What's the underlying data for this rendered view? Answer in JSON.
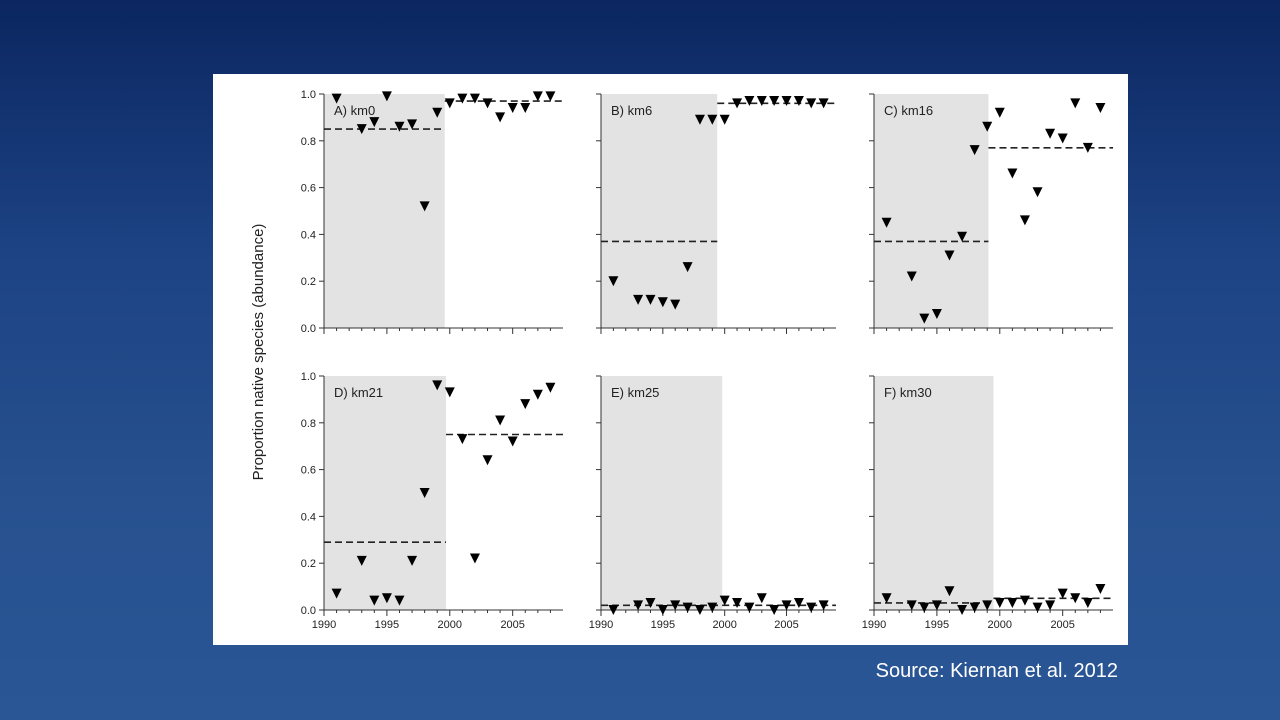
{
  "slide": {
    "source_text": "Source: Kiernan et al. 2012"
  },
  "colors": {
    "shade": "#e3e3e3",
    "marker": "#000000",
    "axis": "#333333"
  },
  "chart_data": {
    "type": "scatter",
    "ylabel": "Proportion native species (abundance)",
    "xlim": [
      1990,
      2009
    ],
    "ylim": [
      0,
      1.0
    ],
    "x_ticks": [
      1990,
      1995,
      2000,
      2005
    ],
    "y_ticks": [
      "0.0",
      "0.2",
      "0.4",
      "0.6",
      "0.8",
      "1.0"
    ],
    "panels": [
      {
        "label": "A) km0",
        "shade_range": [
          1990,
          1999.6
        ],
        "mean_lines": [
          {
            "x": [
              1990,
              1999.6
            ],
            "y": 0.85
          },
          {
            "x": [
              1999.6,
              2009
            ],
            "y": 0.97
          }
        ],
        "x": [
          1991,
          1993,
          1994,
          1995,
          1996,
          1997,
          1998,
          1999,
          2000,
          2001,
          2002,
          2003,
          2004,
          2005,
          2006,
          2007,
          2008
        ],
        "y": [
          0.98,
          0.85,
          0.88,
          0.99,
          0.86,
          0.87,
          0.52,
          0.92,
          0.96,
          0.98,
          0.98,
          0.96,
          0.9,
          0.94,
          0.94,
          0.99,
          0.99
        ]
      },
      {
        "label": "B) km6",
        "shade_range": [
          1990,
          1999.4
        ],
        "mean_lines": [
          {
            "x": [
              1990,
              1999.4
            ],
            "y": 0.37
          },
          {
            "x": [
              1999.4,
              2009
            ],
            "y": 0.96
          }
        ],
        "x": [
          1991,
          1993,
          1994,
          1995,
          1996,
          1997,
          1998,
          1999,
          2000,
          2001,
          2002,
          2003,
          2004,
          2005,
          2006,
          2007,
          2008
        ],
        "y": [
          0.2,
          0.12,
          0.12,
          0.11,
          0.1,
          0.26,
          0.89,
          0.89,
          0.89,
          0.96,
          0.97,
          0.97,
          0.97,
          0.97,
          0.97,
          0.96,
          0.96
        ]
      },
      {
        "label": "C) km16",
        "shade_range": [
          1990,
          1999.1
        ],
        "mean_lines": [
          {
            "x": [
              1990,
              1999.1
            ],
            "y": 0.37
          },
          {
            "x": [
              1999.1,
              2009
            ],
            "y": 0.77
          }
        ],
        "x": [
          1991,
          1993,
          1994,
          1995,
          1996,
          1997,
          1998,
          1999,
          2000,
          2001,
          2002,
          2003,
          2004,
          2005,
          2006,
          2007,
          2008
        ],
        "y": [
          0.45,
          0.22,
          0.04,
          0.06,
          0.31,
          0.39,
          0.76,
          0.86,
          0.92,
          0.66,
          0.46,
          0.58,
          0.83,
          0.81,
          0.96,
          0.77,
          0.94
        ]
      },
      {
        "label": "D) km21",
        "shade_range": [
          1990,
          1999.7
        ],
        "mean_lines": [
          {
            "x": [
              1990,
              1999.7
            ],
            "y": 0.29
          },
          {
            "x": [
              1999.7,
              2009
            ],
            "y": 0.75
          }
        ],
        "x": [
          1991,
          1993,
          1994,
          1995,
          1996,
          1997,
          1998,
          1999,
          2000,
          2001,
          2002,
          2003,
          2004,
          2005,
          2006,
          2007,
          2008
        ],
        "y": [
          0.07,
          0.21,
          0.04,
          0.05,
          0.04,
          0.21,
          0.5,
          0.96,
          0.93,
          0.73,
          0.22,
          0.64,
          0.81,
          0.72,
          0.88,
          0.92,
          0.95
        ]
      },
      {
        "label": "E) km25",
        "shade_range": [
          1990,
          1999.8
        ],
        "mean_lines": [
          {
            "x": [
              1990,
              1999.8
            ],
            "y": 0.02
          },
          {
            "x": [
              1999.8,
              2009
            ],
            "y": 0.02
          }
        ],
        "x": [
          1991,
          1993,
          1994,
          1995,
          1996,
          1997,
          1998,
          1999,
          2000,
          2001,
          2002,
          2003,
          2004,
          2005,
          2006,
          2007,
          2008
        ],
        "y": [
          0.0,
          0.02,
          0.03,
          0.0,
          0.02,
          0.01,
          0.0,
          0.01,
          0.04,
          0.03,
          0.01,
          0.05,
          0.0,
          0.02,
          0.03,
          0.01,
          0.02
        ]
      },
      {
        "label": "F) km30",
        "shade_range": [
          1990,
          1999.5
        ],
        "mean_lines": [
          {
            "x": [
              1990,
              1999.5
            ],
            "y": 0.03
          },
          {
            "x": [
              1999.5,
              2009
            ],
            "y": 0.05
          }
        ],
        "x": [
          1991,
          1993,
          1994,
          1995,
          1996,
          1997,
          1998,
          1999,
          2000,
          2001,
          2002,
          2003,
          2004,
          2005,
          2006,
          2007,
          2008
        ],
        "y": [
          0.05,
          0.02,
          0.01,
          0.02,
          0.08,
          0.0,
          0.01,
          0.02,
          0.03,
          0.03,
          0.04,
          0.01,
          0.02,
          0.07,
          0.05,
          0.03,
          0.09
        ]
      }
    ]
  }
}
